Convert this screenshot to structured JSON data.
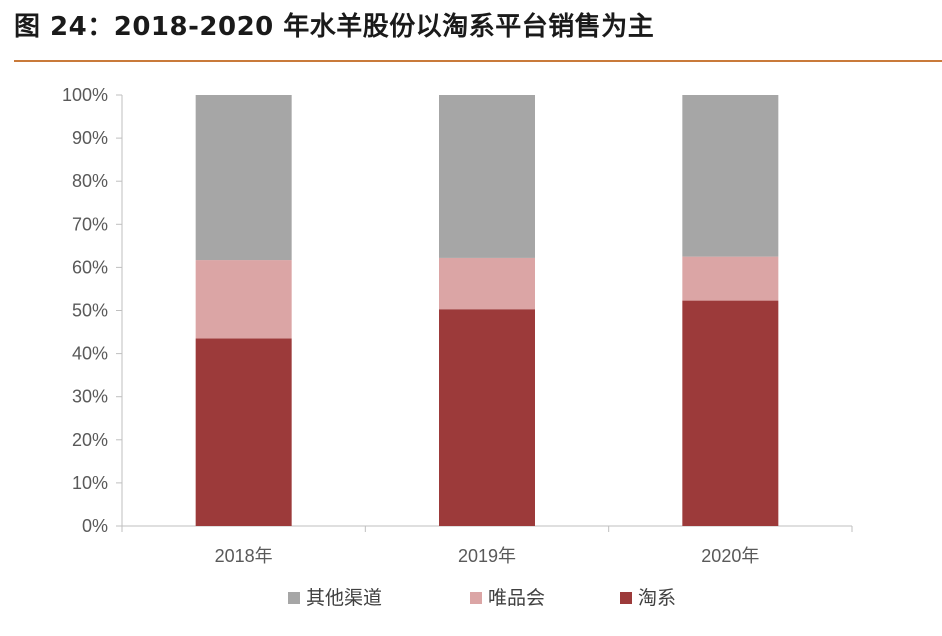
{
  "title": "图 24：2018-2020 年水羊股份以淘系平台销售为主",
  "chart_data": {
    "type": "bar",
    "stacked": true,
    "categories": [
      "2018年",
      "2019年",
      "2020年"
    ],
    "series": [
      {
        "name": "淘系",
        "color": "#9c3a3a",
        "values": [
          43.5,
          50.3,
          52.3
        ]
      },
      {
        "name": "唯品会",
        "color": "#dba5a5",
        "values": [
          18.2,
          11.9,
          10.2
        ]
      },
      {
        "name": "其他渠道",
        "color": "#a6a6a6",
        "values": [
          38.3,
          37.8,
          37.5
        ]
      }
    ],
    "legend_order": [
      "其他渠道",
      "唯品会",
      "淘系"
    ],
    "yticks": [
      "0%",
      "10%",
      "20%",
      "30%",
      "40%",
      "50%",
      "60%",
      "70%",
      "80%",
      "90%",
      "100%"
    ],
    "ylim": [
      0,
      100
    ],
    "legend_position": "bottom",
    "grid": false
  }
}
